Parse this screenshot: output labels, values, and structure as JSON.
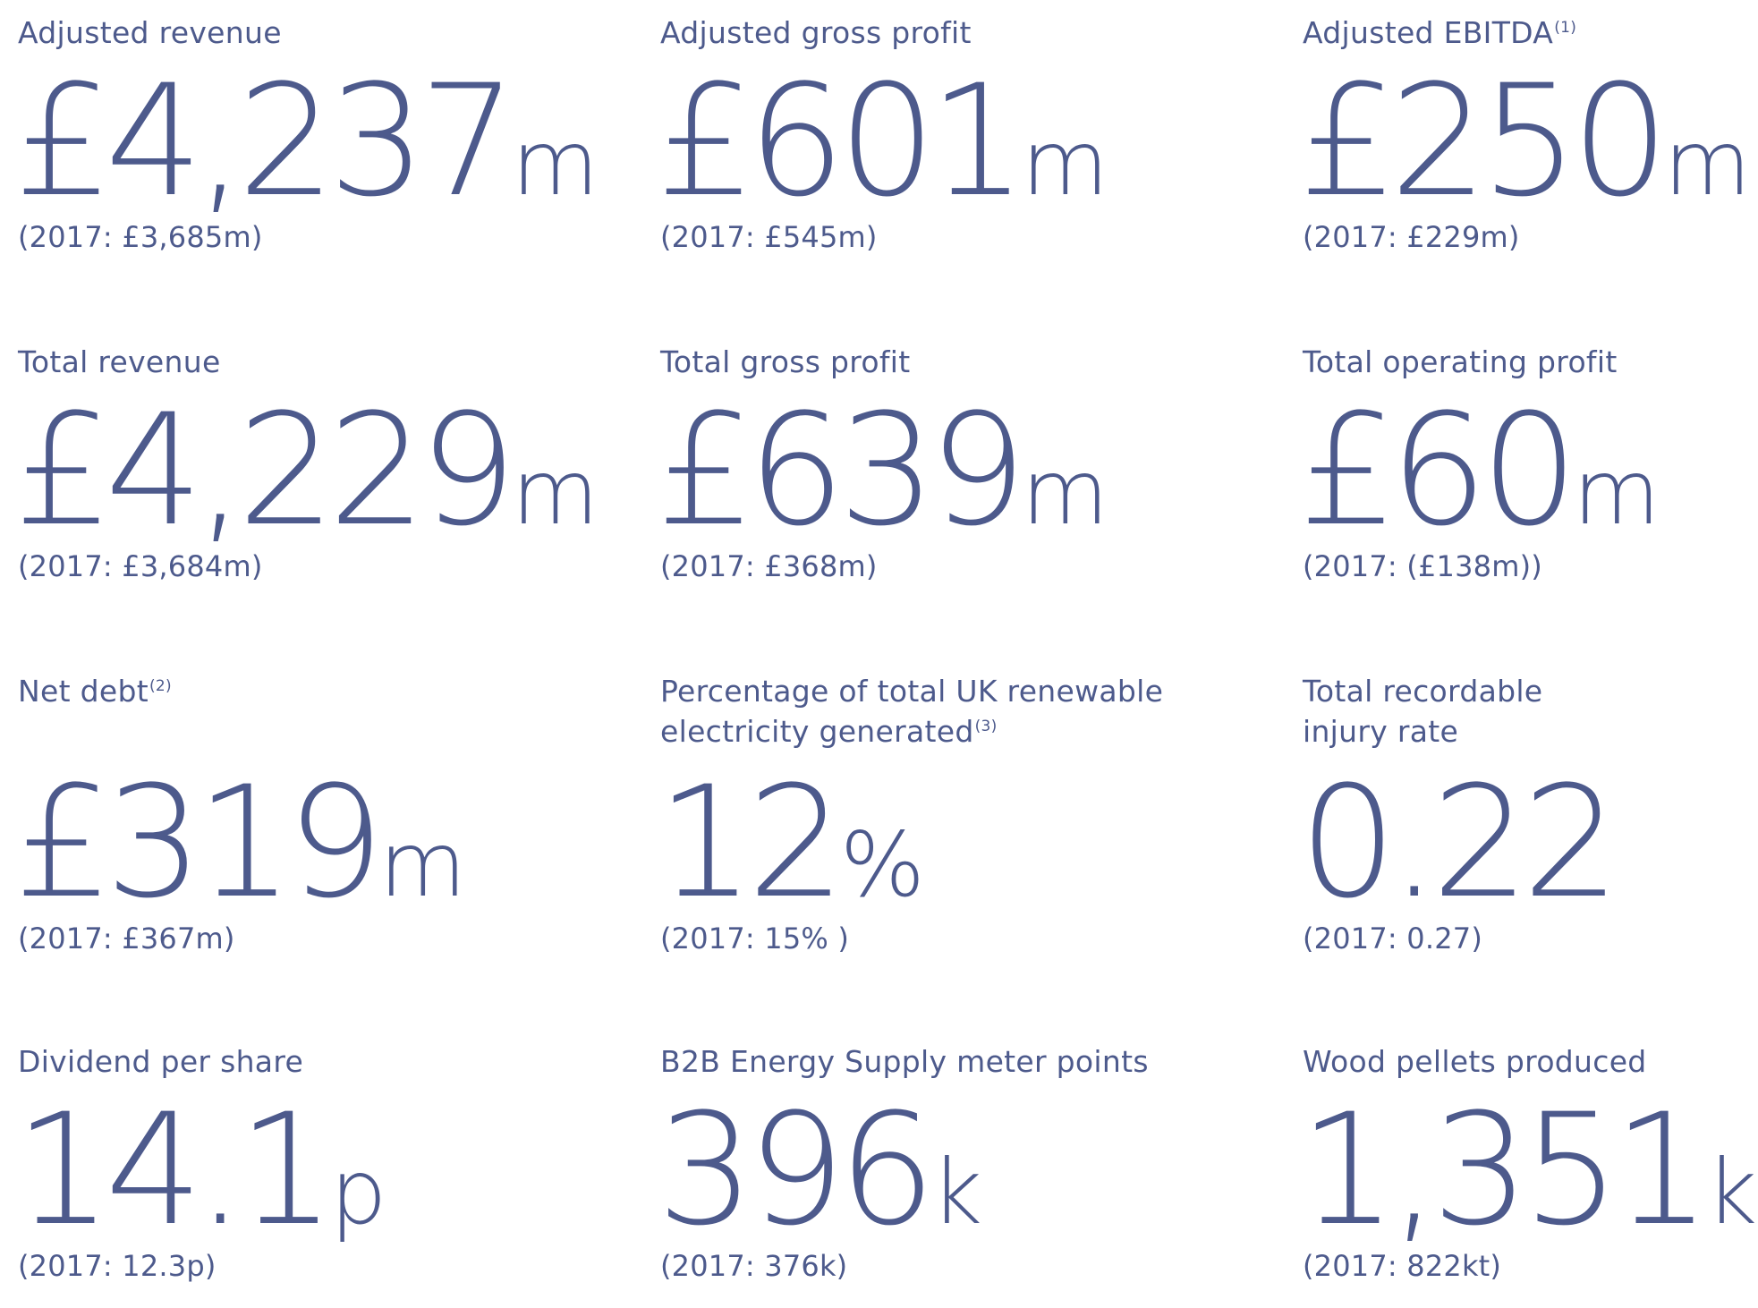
{
  "kpis": [
    {
      "label": "Adjusted revenue",
      "note": "",
      "value": "£4,237",
      "unit": "m",
      "prior": "(2017: £3,685m)"
    },
    {
      "label": "Adjusted gross profit",
      "note": "",
      "value": "£601",
      "unit": "m",
      "prior": "(2017: £545m)"
    },
    {
      "label": "Adjusted EBITDA",
      "note": "(1)",
      "value": "£250",
      "unit": "m",
      "prior": "(2017: £229m)"
    },
    {
      "label": "Total revenue",
      "note": "",
      "value": "£4,229",
      "unit": "m",
      "prior": "(2017: £3,684m)"
    },
    {
      "label": "Total gross profit",
      "note": "",
      "value": "£639",
      "unit": "m",
      "prior": "(2017: £368m)"
    },
    {
      "label": "Total operating profit",
      "note": "",
      "value": "£60",
      "unit": "m",
      "prior": "(2017: (£138m))"
    },
    {
      "label": "Net debt",
      "note": "(2)",
      "value": "£319",
      "unit": "m",
      "prior": "(2017: £367m)"
    },
    {
      "label": "Percentage of total UK renewable",
      "label2": "electricity generated",
      "note": "(3)",
      "value": "12",
      "unit": "%",
      "prior": "(2017: 15% )"
    },
    {
      "label": "Total recordable",
      "label2": "injury rate",
      "note": "",
      "value": "0.22",
      "unit": "",
      "prior": "(2017: 0.27)"
    },
    {
      "label": "Dividend per share",
      "note": "",
      "value": "14.1",
      "unit": "p",
      "prior": "(2017: 12.3p)"
    },
    {
      "label": "B2B Energy Supply meter points",
      "note": "",
      "value": "396",
      "unit": "k",
      "prior": "(2017: 376k)"
    },
    {
      "label": "Wood pellets produced",
      "note": "",
      "value": "1,351",
      "unit": "kt",
      "prior": "(2017: 822kt)"
    }
  ]
}
